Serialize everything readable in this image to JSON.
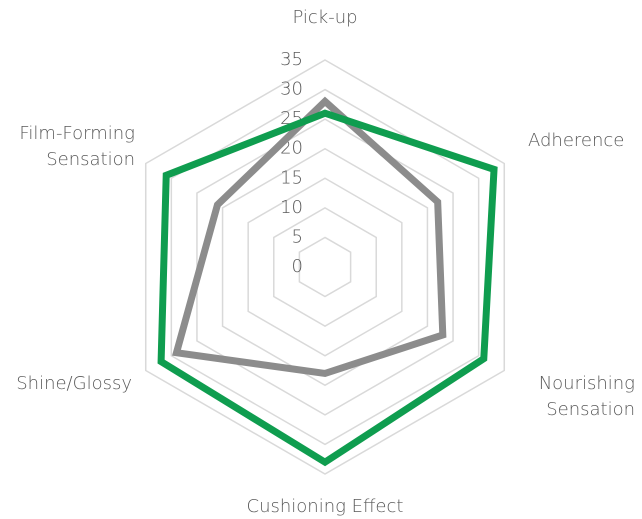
{
  "chart_data": {
    "type": "radar",
    "categories": [
      "Pick-up",
      "Adherence",
      "Nourishing\nSensation",
      "Cushioning Effect",
      "Shine/Glossy",
      "Film-Forming\nSensation"
    ],
    "series": [
      {
        "color": "#8c8c8c",
        "values": [
          28,
          22,
          23,
          18,
          29,
          21
        ]
      },
      {
        "color": "#0f9d4f",
        "values": [
          26,
          33,
          31,
          33,
          32,
          31
        ]
      }
    ],
    "ylim": [
      0,
      35
    ],
    "yticks": [
      0,
      5,
      10,
      15,
      20,
      25,
      30,
      35
    ],
    "grid": true
  }
}
